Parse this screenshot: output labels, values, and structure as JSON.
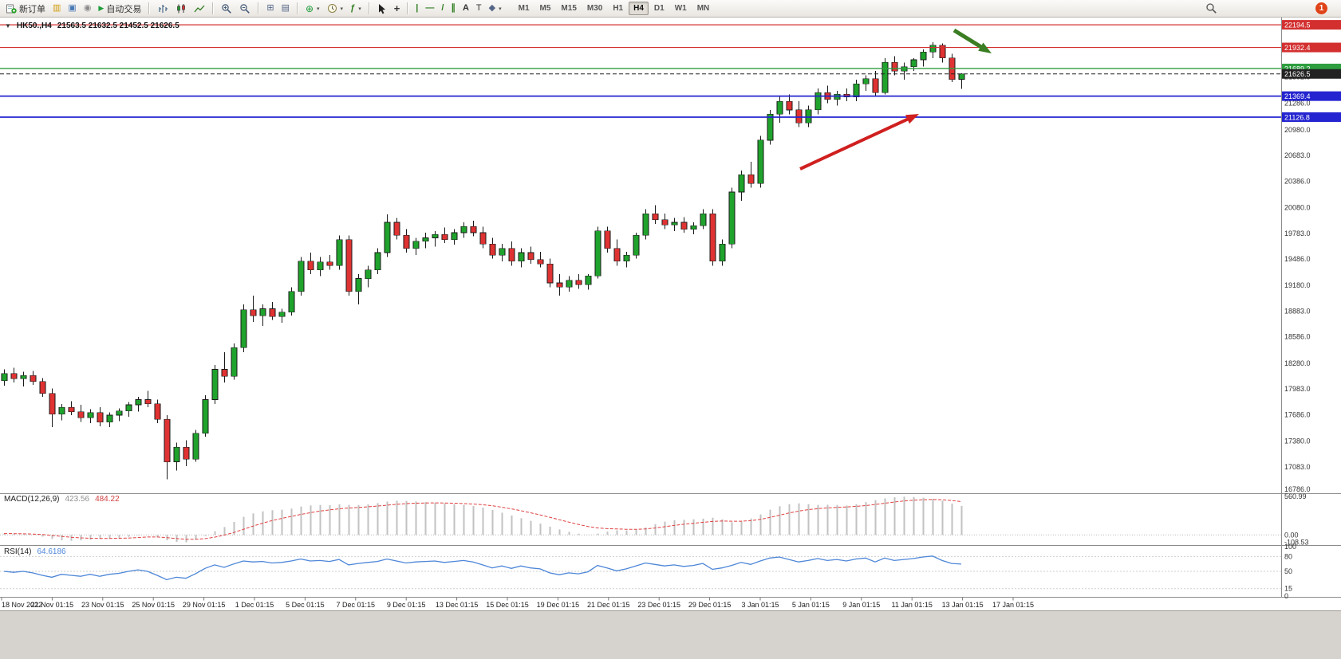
{
  "toolbar": {
    "new_order_label": "新订单",
    "autotrade_label": "自动交易",
    "timeframes": [
      "M1",
      "M5",
      "M15",
      "M30",
      "H1",
      "H4",
      "D1",
      "W1",
      "MN"
    ],
    "active_timeframe": "H4",
    "notification_count": "1"
  },
  "chart": {
    "symbol_period": "HK50.,H4",
    "ohlc_text": "21563.5 21632.5 21452.5 21626.5",
    "macd_label": "MACD(12,26,9)",
    "macd_value": "423.56",
    "macd_signal": "484.22",
    "rsi_label": "RSI(14)",
    "rsi_value": "64.6186"
  },
  "colors": {
    "candle_up": "#1fa32c",
    "candle_down": "#e03232",
    "candle_outline": "#1a1a1a",
    "macd_hist": "#c2c2c2",
    "macd_signal": "#e04040",
    "rsi_line": "#4d86d8",
    "grid_text": "#333333",
    "axis_line": "#8c8c8c"
  },
  "chart_data": {
    "type": "candlestick",
    "symbol": "HK50.",
    "period": "H4",
    "y_range": {
      "top": 22260,
      "bottom": 16786
    },
    "macd_range": {
      "top": 575,
      "bottom": -125
    },
    "grid_labels": [
      "21592.0",
      "21286.0",
      "20980.0",
      "20683.0",
      "20386.0",
      "20080.0",
      "19783.0",
      "19486.0",
      "19180.0",
      "18883.0",
      "18586.0",
      "18280.0",
      "17983.0",
      "17686.0",
      "17380.0",
      "17083.0",
      "16786.0"
    ],
    "levels": [
      {
        "label": "22194.5",
        "price": 22194.5,
        "color": "#d32f2f",
        "style": "solid",
        "width": 1.2
      },
      {
        "label": "21932.4",
        "price": 21932.4,
        "color": "#d32f2f",
        "style": "solid",
        "width": 1.2
      },
      {
        "label": "21689.2",
        "price": 21689.2,
        "color": "#2e9e3f",
        "style": "solid",
        "width": 1.4
      },
      {
        "label": "21626.5",
        "price": 21626.5,
        "color": "#222222",
        "style": "dash",
        "width": 1
      },
      {
        "label": "21369.4",
        "price": 21369.4,
        "color": "#2424d0",
        "style": "solid",
        "width": 1.8
      },
      {
        "label": "21126.8",
        "price": 21126.8,
        "color": "#2424d0",
        "style": "solid",
        "width": 1.8
      }
    ],
    "macd_axis_labels": [
      "560.99",
      "0.00",
      "-108.53"
    ],
    "rsi_axis_labels": [
      "100",
      "80",
      "50",
      "15",
      "0"
    ],
    "rsi_levels": [
      80,
      50,
      15
    ],
    "dates": [
      "18 Nov 2022",
      "21 Nov 01:15",
      "23 Nov 01:15",
      "25 Nov 01:15",
      "29 Nov 01:15",
      "1 Dec 01:15",
      "5 Dec 01:15",
      "7 Dec 01:15",
      "9 Dec 01:15",
      "13 Dec 01:15",
      "15 Dec 01:15",
      "19 Dec 01:15",
      "21 Dec 01:15",
      "23 Dec 01:15",
      "29 Dec 01:15",
      "3 Jan 01:15",
      "5 Jan 01:15",
      "9 Jan 01:15",
      "11 Jan 01:15",
      "13 Jan 01:15",
      "17 Jan 01:15"
    ],
    "ohlc": [
      [
        18080,
        18210,
        18020,
        18160
      ],
      [
        18160,
        18230,
        18060,
        18100
      ],
      [
        18100,
        18180,
        18010,
        18140
      ],
      [
        18140,
        18190,
        18030,
        18070
      ],
      [
        18070,
        18110,
        17890,
        17930
      ],
      [
        17930,
        17990,
        17540,
        17690
      ],
      [
        17690,
        17810,
        17620,
        17770
      ],
      [
        17770,
        17840,
        17680,
        17720
      ],
      [
        17720,
        17800,
        17600,
        17650
      ],
      [
        17650,
        17750,
        17590,
        17710
      ],
      [
        17710,
        17770,
        17550,
        17600
      ],
      [
        17600,
        17710,
        17540,
        17680
      ],
      [
        17680,
        17760,
        17610,
        17730
      ],
      [
        17730,
        17830,
        17660,
        17800
      ],
      [
        17800,
        17890,
        17720,
        17860
      ],
      [
        17860,
        17960,
        17770,
        17810
      ],
      [
        17810,
        17860,
        17590,
        17630
      ],
      [
        17630,
        17680,
        16940,
        17140
      ],
      [
        17140,
        17360,
        17040,
        17310
      ],
      [
        17310,
        17390,
        17090,
        17170
      ],
      [
        17170,
        17510,
        17140,
        17470
      ],
      [
        17470,
        17910,
        17430,
        17860
      ],
      [
        17860,
        18260,
        17810,
        18210
      ],
      [
        18210,
        18410,
        18060,
        18130
      ],
      [
        18130,
        18510,
        18090,
        18460
      ],
      [
        18460,
        18960,
        18410,
        18900
      ],
      [
        18900,
        19060,
        18760,
        18830
      ],
      [
        18830,
        18960,
        18710,
        18910
      ],
      [
        18910,
        18990,
        18780,
        18820
      ],
      [
        18820,
        18910,
        18750,
        18870
      ],
      [
        18870,
        19160,
        18830,
        19110
      ],
      [
        19110,
        19510,
        19060,
        19460
      ],
      [
        19460,
        19560,
        19310,
        19360
      ],
      [
        19360,
        19510,
        19290,
        19450
      ],
      [
        19450,
        19530,
        19360,
        19410
      ],
      [
        19410,
        19760,
        19360,
        19710
      ],
      [
        19710,
        19760,
        19060,
        19110
      ],
      [
        19110,
        19310,
        18960,
        19260
      ],
      [
        19260,
        19410,
        19160,
        19360
      ],
      [
        19360,
        19610,
        19310,
        19560
      ],
      [
        19560,
        20000,
        19510,
        19910
      ],
      [
        19910,
        19960,
        19710,
        19760
      ],
      [
        19760,
        19830,
        19560,
        19610
      ],
      [
        19610,
        19730,
        19530,
        19690
      ],
      [
        19690,
        19790,
        19610,
        19730
      ],
      [
        19730,
        19810,
        19630,
        19770
      ],
      [
        19770,
        19850,
        19670,
        19710
      ],
      [
        19710,
        19830,
        19650,
        19790
      ],
      [
        19790,
        19910,
        19730,
        19860
      ],
      [
        19860,
        19930,
        19750,
        19790
      ],
      [
        19790,
        19860,
        19610,
        19660
      ],
      [
        19660,
        19730,
        19490,
        19530
      ],
      [
        19530,
        19660,
        19460,
        19610
      ],
      [
        19610,
        19690,
        19410,
        19460
      ],
      [
        19460,
        19610,
        19390,
        19560
      ],
      [
        19560,
        19630,
        19430,
        19480
      ],
      [
        19480,
        19570,
        19390,
        19430
      ],
      [
        19430,
        19490,
        19160,
        19210
      ],
      [
        19210,
        19310,
        19060,
        19160
      ],
      [
        19160,
        19290,
        19110,
        19240
      ],
      [
        19240,
        19310,
        19140,
        19190
      ],
      [
        19190,
        19310,
        19130,
        19290
      ],
      [
        19290,
        19860,
        19260,
        19810
      ],
      [
        19810,
        19860,
        19560,
        19610
      ],
      [
        19610,
        19710,
        19410,
        19460
      ],
      [
        19460,
        19570,
        19390,
        19530
      ],
      [
        19530,
        19790,
        19490,
        19760
      ],
      [
        19760,
        20060,
        19710,
        20010
      ],
      [
        20010,
        20110,
        19890,
        19940
      ],
      [
        19940,
        20010,
        19830,
        19880
      ],
      [
        19880,
        19960,
        19810,
        19910
      ],
      [
        19910,
        19970,
        19790,
        19830
      ],
      [
        19830,
        19910,
        19770,
        19870
      ],
      [
        19870,
        20060,
        19830,
        20010
      ],
      [
        20010,
        20060,
        19410,
        19460
      ],
      [
        19460,
        19710,
        19410,
        19660
      ],
      [
        19660,
        20310,
        19610,
        20260
      ],
      [
        20260,
        20510,
        20160,
        20460
      ],
      [
        20460,
        20610,
        20310,
        20360
      ],
      [
        20360,
        20910,
        20310,
        20860
      ],
      [
        20860,
        21210,
        20810,
        21160
      ],
      [
        21160,
        21360,
        21060,
        21310
      ],
      [
        21310,
        21390,
        21160,
        21210
      ],
      [
        21210,
        21310,
        21010,
        21060
      ],
      [
        21060,
        21260,
        21010,
        21210
      ],
      [
        21210,
        21460,
        21160,
        21410
      ],
      [
        21410,
        21490,
        21290,
        21330
      ],
      [
        21330,
        21430,
        21260,
        21390
      ],
      [
        21390,
        21460,
        21310,
        21360
      ],
      [
        21360,
        21560,
        21310,
        21510
      ],
      [
        21510,
        21610,
        21430,
        21570
      ],
      [
        21570,
        21660,
        21360,
        21410
      ],
      [
        21410,
        21810,
        21390,
        21760
      ],
      [
        21760,
        21830,
        21610,
        21660
      ],
      [
        21660,
        21760,
        21560,
        21710
      ],
      [
        21710,
        21810,
        21660,
        21790
      ],
      [
        21790,
        21910,
        21710,
        21880
      ],
      [
        21880,
        21995,
        21810,
        21960
      ],
      [
        21960,
        21980,
        21760,
        21810
      ],
      [
        21810,
        21860,
        21530,
        21563
      ],
      [
        21563.5,
        21632.5,
        21452.5,
        21626.5
      ]
    ],
    "macd": [
      20,
      12,
      8,
      0,
      -25,
      -60,
      -78,
      -85,
      -80,
      -70,
      -60,
      -52,
      -42,
      -28,
      -10,
      2,
      -30,
      -80,
      -102,
      -108,
      -70,
      -15,
      55,
      115,
      190,
      265,
      315,
      345,
      362,
      370,
      385,
      415,
      432,
      438,
      435,
      448,
      440,
      438,
      448,
      465,
      488,
      500,
      498,
      490,
      480,
      472,
      462,
      450,
      440,
      425,
      400,
      365,
      325,
      285,
      245,
      205,
      165,
      122,
      80,
      45,
      18,
      5,
      20,
      48,
      68,
      66,
      78,
      108,
      158,
      195,
      215,
      222,
      228,
      238,
      252,
      228,
      188,
      202,
      240,
      300,
      370,
      420,
      450,
      462,
      450,
      440,
      442,
      438,
      430,
      450,
      480,
      510,
      535,
      552,
      560,
      555,
      545,
      530,
      500,
      460,
      424
    ],
    "rsi": [
      50,
      48,
      50,
      47,
      42,
      38,
      44,
      42,
      40,
      44,
      40,
      44,
      46,
      50,
      53,
      50,
      42,
      33,
      38,
      36,
      45,
      56,
      63,
      58,
      65,
      71,
      69,
      70,
      67,
      68,
      71,
      75,
      71,
      72,
      70,
      74,
      63,
      66,
      68,
      70,
      75,
      71,
      67,
      69,
      70,
      71,
      68,
      70,
      72,
      69,
      63,
      57,
      61,
      56,
      61,
      57,
      55,
      47,
      43,
      47,
      45,
      49,
      62,
      57,
      51,
      55,
      61,
      67,
      64,
      61,
      63,
      60,
      62,
      66,
      54,
      57,
      62,
      68,
      64,
      71,
      77,
      79,
      74,
      69,
      72,
      76,
      72,
      74,
      71,
      75,
      77,
      69,
      77,
      72,
      74,
      76,
      79,
      81,
      72,
      66,
      64.6
    ],
    "annotations": [
      {
        "type": "arrow",
        "color": "#d01f1f",
        "width": 4,
        "from": [
          1003,
          190
        ],
        "to": [
          1152,
          121
        ]
      },
      {
        "type": "arrow",
        "color": "#3b7d22",
        "width": 5,
        "from": [
          1196,
          16
        ],
        "to": [
          1243,
          45
        ]
      }
    ]
  }
}
